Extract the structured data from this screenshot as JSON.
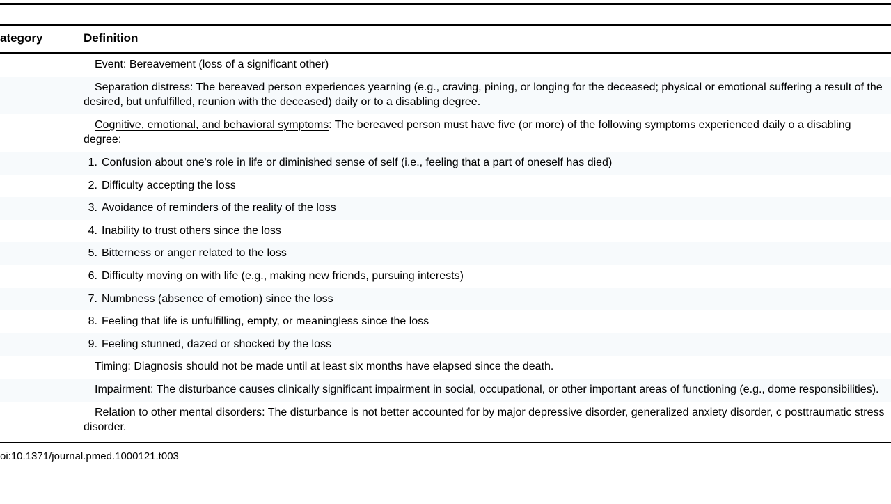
{
  "header": {
    "category_label": "ategory",
    "definition_label": "Definition"
  },
  "rows": [
    {
      "alt": false,
      "lead": "Event",
      "text": ": Bereavement (loss of a significant other)"
    },
    {
      "alt": true,
      "lead": "Separation distress",
      "text": ": The bereaved person experiences yearning (e.g., craving, pining, or longing for the deceased; physical or emotional suffering a result of the desired, but unfulfilled, reunion with the deceased) daily or to a disabling degree."
    },
    {
      "alt": false,
      "lead": "Cognitive, emotional, and behavioral symptoms",
      "text": ": The bereaved person must have five (or more) of the following symptoms experienced daily o a disabling degree:"
    },
    {
      "alt": true,
      "num": "1.",
      "text": "Confusion about one's role in life or diminished sense of self (i.e., feeling that a part of oneself has died)"
    },
    {
      "alt": false,
      "num": "2.",
      "text": "Difficulty accepting the loss"
    },
    {
      "alt": true,
      "num": "3.",
      "text": "Avoidance of reminders of the reality of the loss"
    },
    {
      "alt": false,
      "num": "4.",
      "text": "Inability to trust others since the loss"
    },
    {
      "alt": true,
      "num": "5.",
      "text": "Bitterness or anger related to the loss"
    },
    {
      "alt": false,
      "num": "6.",
      "text": "Difficulty moving on with life (e.g., making new friends, pursuing interests)"
    },
    {
      "alt": true,
      "num": "7.",
      "text": "Numbness (absence of emotion) since the loss"
    },
    {
      "alt": false,
      "num": "8.",
      "text": "Feeling that life is unfulfilling, empty, or meaningless since the loss"
    },
    {
      "alt": true,
      "num": "9.",
      "text": "Feeling stunned, dazed or shocked by the loss"
    },
    {
      "alt": false,
      "lead": "Timing",
      "text": ": Diagnosis should not be made until at least six months have elapsed since the death."
    },
    {
      "alt": true,
      "lead": "Impairment",
      "text": ": The disturbance causes clinically significant impairment in social, occupational, or other important areas of functioning (e.g., dome responsibilities)."
    },
    {
      "alt": false,
      "lead": "Relation to other mental disorders",
      "text": ": The disturbance is not better accounted for by major depressive disorder, generalized anxiety disorder, c posttraumatic stress disorder."
    }
  ],
  "doi": "oi:10.1371/journal.pmed.1000121.t003",
  "style": {
    "background_color": "#ffffff",
    "alt_row_color": "#f7fafc",
    "text_color": "#000000",
    "rule_color": "#000000",
    "header_fontsize": 17,
    "body_fontsize": 16,
    "doi_fontsize": 15,
    "font_family": "Arial"
  }
}
